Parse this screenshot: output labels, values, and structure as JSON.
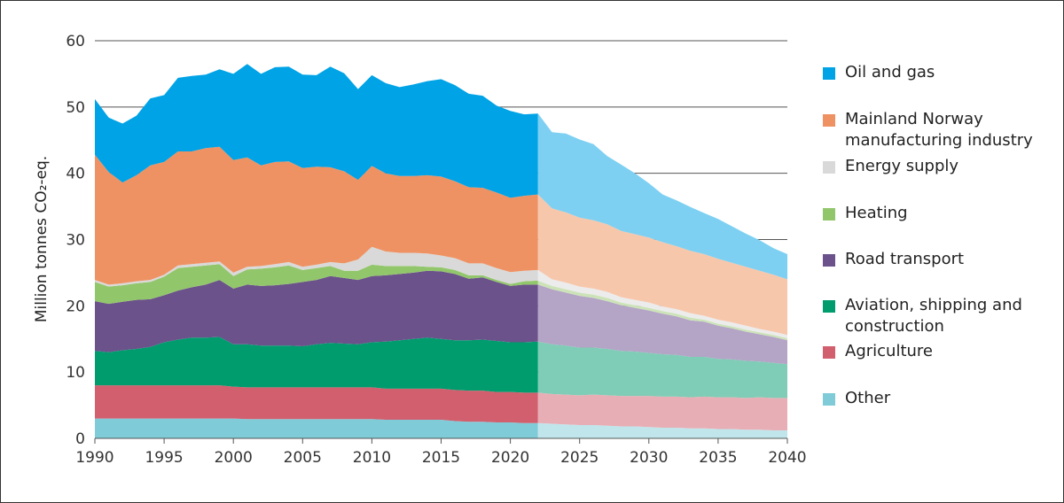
{
  "chart_data": {
    "type": "area",
    "stacked": true,
    "title": "",
    "xlabel": "",
    "ylabel": "Million tonnes CO₂-eq.",
    "xlim": [
      1990,
      2040
    ],
    "ylim": [
      0,
      60
    ],
    "yticks": [
      "0",
      "10",
      "20",
      "30",
      "40",
      "50",
      "60"
    ],
    "xticks": [
      "1990",
      "1995",
      "2000",
      "2005",
      "2010",
      "2015",
      "2020",
      "2025",
      "2030",
      "2035",
      "2040"
    ],
    "grid": "horizontal",
    "legend_position": "right",
    "history_years": [
      1990,
      2022
    ],
    "projection_years": [
      2023,
      2040
    ],
    "series": [
      {
        "name": "Other",
        "color": "#7fccd8",
        "projection_color": "#c0e6ec",
        "values": [
          3.0,
          3.0,
          3.0,
          3.0,
          3.0,
          3.0,
          3.0,
          3.0,
          3.0,
          3.0,
          3.0,
          2.9,
          2.9,
          2.9,
          2.9,
          2.9,
          2.9,
          2.9,
          2.9,
          2.9,
          2.9,
          2.8,
          2.8,
          2.8,
          2.8,
          2.8,
          2.6,
          2.5,
          2.5,
          2.4,
          2.4,
          2.3,
          2.3,
          2.2,
          2.1,
          2.0,
          2.0,
          1.9,
          1.8,
          1.8,
          1.7,
          1.6,
          1.6,
          1.5,
          1.5,
          1.4,
          1.4,
          1.3,
          1.3,
          1.2,
          1.2
        ]
      },
      {
        "name": "Agriculture",
        "color": "#d25f6e",
        "projection_color": "#e8aeb5",
        "values": [
          5.0,
          5.0,
          5.0,
          5.0,
          5.0,
          5.0,
          5.0,
          5.0,
          5.0,
          5.0,
          4.8,
          4.8,
          4.8,
          4.8,
          4.8,
          4.8,
          4.8,
          4.8,
          4.8,
          4.8,
          4.8,
          4.7,
          4.7,
          4.7,
          4.7,
          4.7,
          4.7,
          4.7,
          4.7,
          4.6,
          4.6,
          4.6,
          4.6,
          4.5,
          4.5,
          4.5,
          4.6,
          4.6,
          4.6,
          4.6,
          4.7,
          4.7,
          4.7,
          4.7,
          4.8,
          4.8,
          4.8,
          4.8,
          4.9,
          4.9,
          4.9
        ]
      },
      {
        "name": "Aviation, shipping and construction",
        "color": "#009c6e",
        "projection_color": "#7fcdb6",
        "values": [
          5.2,
          5.0,
          5.3,
          5.5,
          5.8,
          6.5,
          6.9,
          7.2,
          7.2,
          7.3,
          6.4,
          6.5,
          6.3,
          6.3,
          6.3,
          6.2,
          6.5,
          6.7,
          6.6,
          6.5,
          6.8,
          7.1,
          7.3,
          7.5,
          7.7,
          7.5,
          7.5,
          7.6,
          7.7,
          7.7,
          7.5,
          7.6,
          7.7,
          7.5,
          7.4,
          7.2,
          7.1,
          7.0,
          6.8,
          6.7,
          6.5,
          6.4,
          6.3,
          6.1,
          6.0,
          5.8,
          5.7,
          5.6,
          5.4,
          5.3,
          5.1
        ]
      },
      {
        "name": "Road transport",
        "color": "#6b528a",
        "projection_color": "#b4a4c6",
        "values": [
          7.5,
          7.3,
          7.3,
          7.4,
          7.2,
          7.1,
          7.4,
          7.6,
          8.0,
          8.6,
          8.4,
          9.0,
          9.0,
          9.1,
          9.3,
          9.7,
          9.7,
          10.1,
          9.9,
          9.7,
          10.0,
          10.0,
          10.0,
          10.0,
          10.1,
          10.2,
          10.0,
          9.3,
          9.4,
          8.9,
          8.5,
          8.7,
          8.6,
          8.3,
          8.0,
          7.8,
          7.5,
          7.2,
          6.9,
          6.6,
          6.4,
          6.1,
          5.8,
          5.5,
          5.3,
          5.0,
          4.7,
          4.4,
          4.1,
          3.9,
          3.6
        ]
      },
      {
        "name": "Heating",
        "color": "#92c66b",
        "projection_color": "#cce3b8",
        "values": [
          2.9,
          2.6,
          2.5,
          2.5,
          2.6,
          2.8,
          3.4,
          3.1,
          2.9,
          2.4,
          1.9,
          2.3,
          2.6,
          2.7,
          2.8,
          1.8,
          1.8,
          1.5,
          1.1,
          1.4,
          1.7,
          1.4,
          1.2,
          1.0,
          0.6,
          0.6,
          0.6,
          0.5,
          0.3,
          0.3,
          0.3,
          0.5,
          0.6,
          0.5,
          0.5,
          0.5,
          0.5,
          0.5,
          0.4,
          0.4,
          0.4,
          0.4,
          0.4,
          0.4,
          0.3,
          0.3,
          0.3,
          0.3,
          0.3,
          0.3,
          0.3
        ]
      },
      {
        "name": "Energy supply",
        "color": "#d9d9d9",
        "projection_color": "#ececec",
        "values": [
          0.3,
          0.3,
          0.3,
          0.3,
          0.3,
          0.3,
          0.4,
          0.4,
          0.4,
          0.4,
          0.5,
          0.4,
          0.4,
          0.5,
          0.5,
          0.5,
          0.5,
          0.6,
          1.1,
          1.7,
          2.7,
          2.2,
          2.0,
          2.0,
          2.0,
          1.8,
          1.8,
          1.8,
          1.8,
          1.8,
          1.8,
          1.6,
          1.6,
          1.0,
          1.0,
          0.9,
          0.9,
          0.9,
          0.8,
          0.8,
          0.8,
          0.7,
          0.7,
          0.7,
          0.6,
          0.6,
          0.6,
          0.6,
          0.5,
          0.5,
          0.5
        ]
      },
      {
        "name": "Mainland Norway manufacturing industry",
        "color": "#ef9263",
        "projection_color": "#f7c7ac",
        "values": [
          18.9,
          17.0,
          15.2,
          16.0,
          17.3,
          17.0,
          17.2,
          17.0,
          17.3,
          17.3,
          17.0,
          16.5,
          15.2,
          15.4,
          15.2,
          14.9,
          14.8,
          14.3,
          13.9,
          12.0,
          12.2,
          11.8,
          11.6,
          11.6,
          11.8,
          11.9,
          11.6,
          11.5,
          11.4,
          11.4,
          11.2,
          11.3,
          11.4,
          10.7,
          10.6,
          10.4,
          10.3,
          10.2,
          10.0,
          9.9,
          9.8,
          9.7,
          9.5,
          9.4,
          9.3,
          9.2,
          9.0,
          8.9,
          8.8,
          8.6,
          8.4
        ]
      },
      {
        "name": "Oil and gas",
        "color": "#00a3e6",
        "projection_color": "#7dd0f2",
        "values": [
          8.4,
          8.2,
          8.9,
          9.0,
          10.1,
          10.1,
          11.1,
          11.4,
          11.1,
          11.7,
          13.0,
          14.1,
          13.8,
          14.3,
          14.3,
          14.1,
          13.8,
          15.2,
          14.8,
          13.7,
          13.7,
          13.6,
          13.4,
          13.8,
          14.2,
          14.7,
          14.5,
          14.1,
          13.9,
          13.1,
          13.1,
          12.3,
          12.2,
          11.5,
          11.9,
          11.8,
          11.5,
          10.3,
          10.0,
          9.2,
          8.2,
          7.2,
          6.9,
          6.6,
          6.2,
          6.0,
          5.5,
          5.0,
          4.6,
          4.0,
          3.8
        ]
      }
    ]
  },
  "legend_order": [
    "Oil and gas",
    "Mainland Norway manufacturing industry",
    "Energy supply",
    "Heating",
    "Road transport",
    "Aviation, shipping and construction",
    "Agriculture",
    "Other"
  ]
}
